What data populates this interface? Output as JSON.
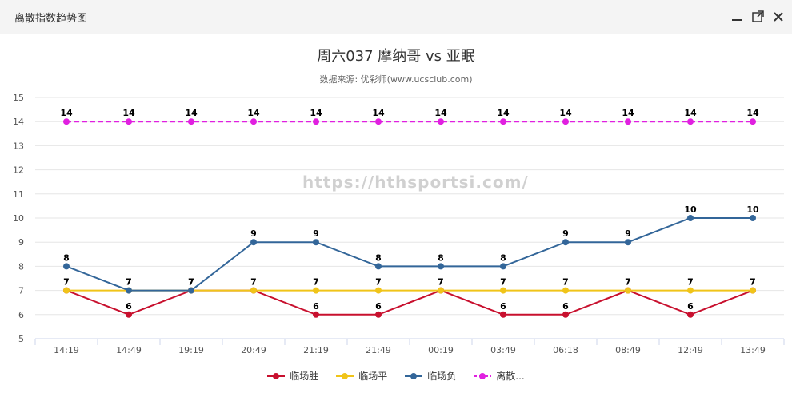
{
  "window": {
    "title": "离散指数趋势图",
    "minimize_icon": "minimize-icon",
    "maximize_icon": "maximize-icon",
    "close_icon": "close-icon"
  },
  "chart_data": {
    "type": "line",
    "title": "周六037 摩纳哥 vs 亚眠",
    "subtitle": "数据来源: 优彩师(www.ucsclub.com)",
    "watermark": "https://hthsportsi.com/",
    "xlabel": "",
    "ylabel": "",
    "categories": [
      "14:19",
      "14:49",
      "19:19",
      "20:49",
      "21:19",
      "21:49",
      "00:19",
      "03:49",
      "06:18",
      "08:49",
      "12:49",
      "13:49"
    ],
    "ylim": [
      5,
      15
    ],
    "yticks": [
      5,
      6,
      7,
      8,
      9,
      10,
      11,
      12,
      13,
      14,
      15
    ],
    "grid": true,
    "legend_position": "bottom",
    "series": [
      {
        "name": "临场胜",
        "color": "#c8102e",
        "dashed": false,
        "values": [
          7,
          6,
          7,
          7,
          6,
          6,
          7,
          6,
          6,
          7,
          6,
          7
        ],
        "show_labels": "below_if_min"
      },
      {
        "name": "临场平",
        "color": "#f0c419",
        "dashed": false,
        "values": [
          7,
          7,
          7,
          7,
          7,
          7,
          7,
          7,
          7,
          7,
          7,
          7
        ],
        "show_labels": true
      },
      {
        "name": "临场负",
        "color": "#336699",
        "dashed": false,
        "values": [
          8,
          7,
          7,
          9,
          9,
          8,
          8,
          8,
          9,
          9,
          10,
          10
        ],
        "show_labels": true
      },
      {
        "name": "离散...",
        "color": "#e020e0",
        "dashed": true,
        "values": [
          14,
          14,
          14,
          14,
          14,
          14,
          14,
          14,
          14,
          14,
          14,
          14
        ],
        "show_labels": true
      }
    ]
  }
}
